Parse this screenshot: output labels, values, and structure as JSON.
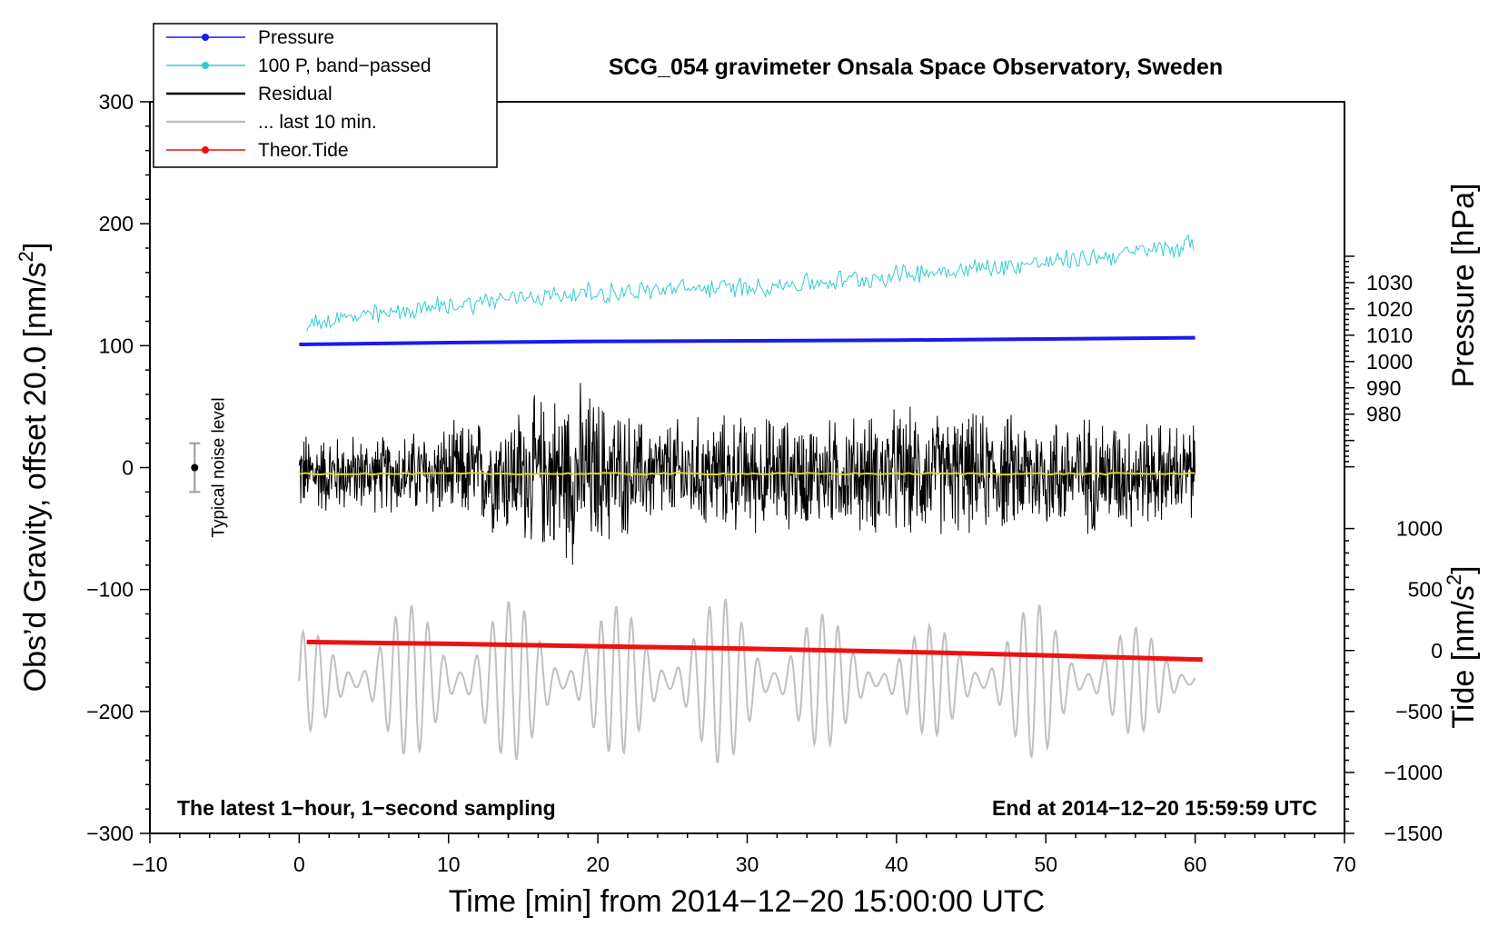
{
  "chart_data": {
    "type": "line",
    "title": "SCG_054 gravimeter Onsala Space Observatory, Sweden",
    "xlabel": "Time [min] from 2014−12−20 15:00:00 UTC",
    "ylabel": "Obs’d Gravity, offset 20.0 [nm/s",
    "ylabel_sup": "2",
    "ylabel_close": "]",
    "y2label": "Pressure [hPa]",
    "y3label": "Tide [nm/s",
    "y3label_sup": "2",
    "y3label_close": "]",
    "xlim": [
      -10,
      70
    ],
    "ylim": [
      -300,
      300
    ],
    "xticks": [
      -10,
      0,
      10,
      20,
      30,
      40,
      50,
      60,
      70
    ],
    "xtick_labels": [
      "−10",
      "0",
      "10",
      "20",
      "30",
      "40",
      "50",
      "60",
      "70"
    ],
    "yticks": [
      -300,
      -200,
      -100,
      0,
      100,
      200,
      300
    ],
    "ytick_labels": [
      "−300",
      "−200",
      "−100",
      "0",
      "100",
      "200",
      "300"
    ],
    "pressure_axis": {
      "ticks": [
        980,
        990,
        1000,
        1010,
        1020,
        1030
      ],
      "tick_labels": [
        "980",
        "990",
        "1000",
        "1010",
        "1020",
        "1030"
      ],
      "value_at_gravity_0": 959.7,
      "units_per_gravity_unit": 0.4633
    },
    "tide_axis": {
      "ticks": [
        -1500,
        -1000,
        -500,
        0,
        500,
        1000
      ],
      "tick_labels": [
        "−1500",
        "−1000",
        "−500",
        "0",
        "500",
        "1000"
      ],
      "value_at_gravity_minus300": -1500,
      "units_per_gravity_unit": 10
    },
    "legend": {
      "placement": "top-left",
      "entries": [
        {
          "label": "Pressure",
          "color": "#1a1aee",
          "marker": "dot"
        },
        {
          "label": "100 P, band−passed",
          "color": "#33cccc",
          "marker": "dot"
        },
        {
          "label": "Residual",
          "color": "#000000",
          "marker": "none"
        },
        {
          "label": "... last 10 min.",
          "color": "#c0c0c0",
          "marker": "none"
        },
        {
          "label": "Theor.Tide",
          "color": "#ee1111",
          "marker": "dot"
        }
      ]
    },
    "annotations": {
      "bottom_left": "The latest 1−hour, 1−second sampling",
      "bottom_right": "End at 2014−12−20 15:59:59 UTC",
      "noise_label": "Typical noise level"
    },
    "noise_bar": {
      "x": -7,
      "center": 0,
      "half_range": 20
    },
    "series": [
      {
        "name": "Pressure",
        "color": "#1a1aee",
        "x": [
          0,
          10,
          20,
          30,
          40,
          50,
          60
        ],
        "values": [
          101,
          102.5,
          103.5,
          104,
          104.5,
          105.5,
          106.5
        ]
      },
      {
        "name": "100 P, band−passed",
        "color": "#33cccc",
        "x": [
          0,
          5,
          10,
          15,
          20,
          25,
          30,
          35,
          40,
          45,
          50,
          55,
          60
        ],
        "values": [
          118,
          125,
          133,
          140,
          143,
          146,
          148,
          152,
          158,
          163,
          168,
          175,
          183
        ],
        "noise_amplitude": 7
      },
      {
        "name": "Residual",
        "color": "#000000",
        "x": [
          0,
          5,
          10,
          13,
          18.5,
          23,
          30,
          35,
          40,
          46,
          53,
          60
        ],
        "envelope": [
          40,
          35,
          45,
          55,
          85,
          50,
          55,
          50,
          60,
          55,
          55,
          45
        ],
        "mean": -5
      },
      {
        "name": "Residual mean",
        "color": "#d8d820",
        "x": [
          0,
          60
        ],
        "values": [
          -5,
          -5
        ]
      },
      {
        "name": "... last 10 min.",
        "color": "#c0c0c0",
        "x": [
          0,
          10,
          20,
          30,
          40,
          50,
          60
        ],
        "center": -175,
        "amplitude": [
          40,
          70,
          60,
          70,
          40,
          65,
          30
        ],
        "period_min": 1.05
      },
      {
        "name": "Theor.Tide",
        "color": "#ee1111",
        "x": [
          0.5,
          10,
          20,
          30,
          40,
          50,
          60.5
        ],
        "values": [
          -143,
          -144.5,
          -146.5,
          -148.5,
          -151,
          -154,
          -157.5
        ]
      }
    ]
  }
}
